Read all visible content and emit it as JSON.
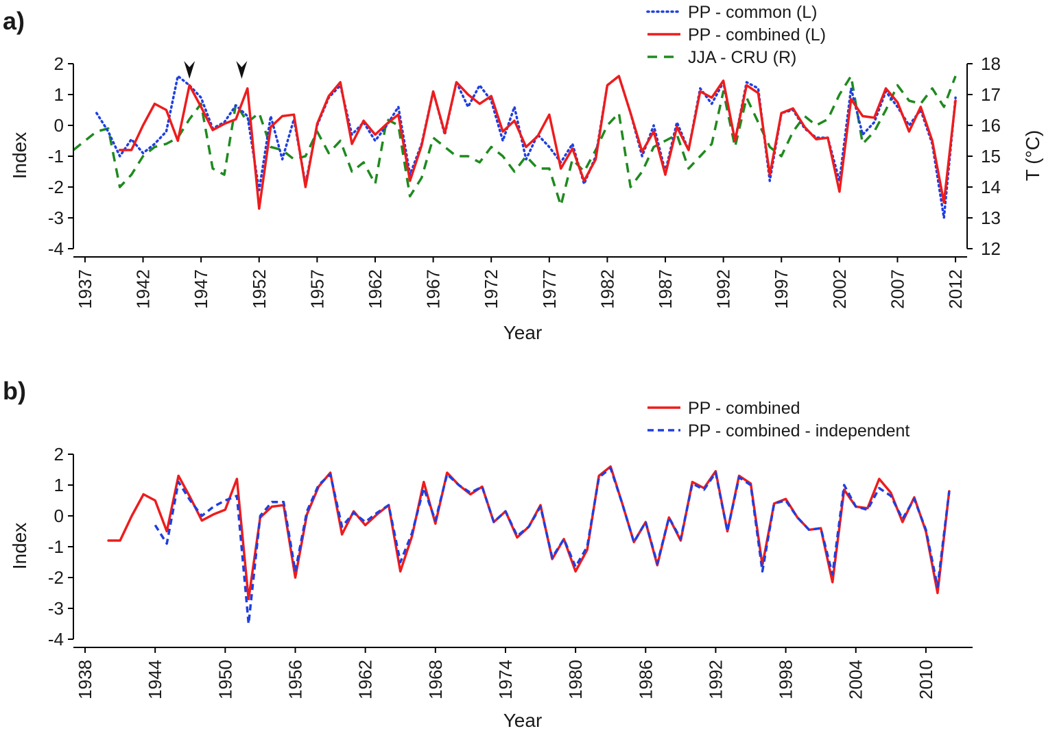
{
  "chart_data": [
    {
      "panel": "a)",
      "type": "line",
      "xlabel": "Year",
      "ylabel": "Index",
      "y2label": "T (°C)",
      "ylim": [
        -4,
        2
      ],
      "y2lim": [
        12,
        18
      ],
      "xlim": [
        1936,
        2013
      ],
      "xticks": [
        1937,
        1942,
        1947,
        1952,
        1957,
        1962,
        1967,
        1972,
        1977,
        1982,
        1987,
        1992,
        1997,
        2002,
        2007,
        2012
      ],
      "yticks": [
        -4,
        -3,
        -2,
        -1,
        0,
        1,
        2
      ],
      "y2ticks": [
        12,
        13,
        14,
        15,
        16,
        17,
        18
      ],
      "legend_position": "top-right",
      "markers": [
        {
          "name": "arrow-1946",
          "x": 1946
        },
        {
          "name": "arrow-1950",
          "x": 1950.5
        }
      ],
      "series": [
        {
          "name": "PP - common (L)",
          "axis": "left",
          "style": "dotted",
          "color": "#1f3fe0",
          "x": [
            1938,
            1939,
            1940,
            1941,
            1942,
            1943,
            1944,
            1945,
            1946,
            1947,
            1948,
            1949,
            1950,
            1951,
            1952,
            1953,
            1954,
            1955,
            1956,
            1957,
            1958,
            1959,
            1960,
            1961,
            1962,
            1963,
            1964,
            1965,
            1966,
            1967,
            1968,
            1969,
            1970,
            1971,
            1972,
            1973,
            1974,
            1975,
            1976,
            1977,
            1978,
            1979,
            1980,
            1981,
            1982,
            1983,
            1984,
            1985,
            1986,
            1987,
            1988,
            1989,
            1990,
            1991,
            1992,
            1993,
            1994,
            1995,
            1996,
            1997,
            1998,
            1999,
            2000,
            2001,
            2002,
            2003,
            2004,
            2005,
            2006,
            2007,
            2008,
            2009,
            2010,
            2011,
            2012
          ],
          "values": [
            0.4,
            -0.2,
            -1.0,
            -0.45,
            -0.9,
            -0.6,
            -0.2,
            1.6,
            1.3,
            0.9,
            -0.1,
            0.1,
            0.65,
            0.3,
            -2.1,
            0.3,
            -1.1,
            0.2,
            -1.9,
            0.0,
            0.9,
            1.3,
            -0.3,
            0.1,
            -0.5,
            0.0,
            0.6,
            -1.6,
            -0.6,
            1.1,
            -0.3,
            1.4,
            0.6,
            1.3,
            0.8,
            -0.5,
            0.6,
            -1.1,
            -0.3,
            -0.7,
            -1.2,
            -0.6,
            -1.9,
            -1.0,
            1.3,
            1.6,
            0.4,
            -1.0,
            0.0,
            -1.5,
            0.1,
            -0.8,
            1.2,
            0.7,
            1.4,
            -0.5,
            1.4,
            1.2,
            -1.8,
            0.4,
            0.5,
            -0.1,
            -0.4,
            -0.4,
            -1.8,
            1.2,
            -0.3,
            0.1,
            1.1,
            0.6,
            0.0,
            0.5,
            -0.6,
            -3.0,
            0.9
          ]
        },
        {
          "name": "PP - combined (L)",
          "axis": "left",
          "style": "solid",
          "color": "#ee1c1c",
          "x": [
            1940,
            1941,
            1942,
            1943,
            1944,
            1945,
            1946,
            1947,
            1948,
            1949,
            1950,
            1951,
            1952,
            1953,
            1954,
            1955,
            1956,
            1957,
            1958,
            1959,
            1960,
            1961,
            1962,
            1963,
            1964,
            1965,
            1966,
            1967,
            1968,
            1969,
            1970,
            1971,
            1972,
            1973,
            1974,
            1975,
            1976,
            1977,
            1978,
            1979,
            1980,
            1981,
            1982,
            1983,
            1984,
            1985,
            1986,
            1987,
            1988,
            1989,
            1990,
            1991,
            1992,
            1993,
            1994,
            1995,
            1996,
            1997,
            1998,
            1999,
            2000,
            2001,
            2002,
            2003,
            2004,
            2005,
            2006,
            2007,
            2008,
            2009,
            2010,
            2011,
            2012
          ],
          "values": [
            -0.8,
            -0.8,
            0.0,
            0.7,
            0.5,
            -0.5,
            1.3,
            0.6,
            -0.15,
            0.05,
            0.2,
            1.2,
            -2.7,
            -0.05,
            0.3,
            0.35,
            -2.0,
            0.05,
            0.95,
            1.4,
            -0.6,
            0.15,
            -0.3,
            0.05,
            0.35,
            -1.8,
            -0.65,
            1.1,
            -0.25,
            1.4,
            1.0,
            0.7,
            0.95,
            -0.2,
            0.15,
            -0.7,
            -0.35,
            0.35,
            -1.4,
            -0.75,
            -1.8,
            -1.1,
            1.3,
            1.6,
            0.4,
            -0.85,
            -0.2,
            -1.6,
            -0.05,
            -0.8,
            1.1,
            0.9,
            1.45,
            -0.5,
            1.3,
            1.05,
            -1.6,
            0.4,
            0.55,
            -0.05,
            -0.45,
            -0.4,
            -2.15,
            0.85,
            0.3,
            0.25,
            1.2,
            0.75,
            -0.2,
            0.6,
            -0.5,
            -2.5,
            0.8
          ]
        },
        {
          "name": "JJA - CRU (R)",
          "axis": "right",
          "style": "dashed",
          "color": "#1f8a1f",
          "x": [
            1936,
            1937,
            1938,
            1939,
            1940,
            1941,
            1942,
            1943,
            1944,
            1945,
            1946,
            1947,
            1948,
            1949,
            1950,
            1951,
            1952,
            1953,
            1954,
            1955,
            1956,
            1957,
            1958,
            1959,
            1960,
            1961,
            1962,
            1963,
            1964,
            1965,
            1966,
            1967,
            1968,
            1969,
            1970,
            1971,
            1972,
            1973,
            1974,
            1975,
            1976,
            1977,
            1978,
            1979,
            1980,
            1981,
            1982,
            1983,
            1984,
            1985,
            1986,
            1987,
            1988,
            1989,
            1990,
            1991,
            1992,
            1993,
            1994,
            1995,
            1996,
            1997,
            1998,
            1999,
            2000,
            2001,
            2002,
            2003,
            2004,
            2005,
            2006,
            2007,
            2008,
            2009,
            2010,
            2011,
            2012
          ],
          "values": [
            15.2,
            15.5,
            15.8,
            15.9,
            14.0,
            14.4,
            15.0,
            15.3,
            15.4,
            15.6,
            16.2,
            16.7,
            14.6,
            14.4,
            16.7,
            16.1,
            16.4,
            15.3,
            15.2,
            14.9,
            15.0,
            15.8,
            15.1,
            15.5,
            14.5,
            14.8,
            14.1,
            16.2,
            16.0,
            13.7,
            14.3,
            15.6,
            15.3,
            15.0,
            15.0,
            14.8,
            15.3,
            15.0,
            14.5,
            15.0,
            14.6,
            14.6,
            13.4,
            14.9,
            14.5,
            15.2,
            16.0,
            16.4,
            14.0,
            14.5,
            15.3,
            15.5,
            15.7,
            14.6,
            15.0,
            15.4,
            17.1,
            15.3,
            16.9,
            16.1,
            15.3,
            15.0,
            15.8,
            16.3,
            16.0,
            16.2,
            17.0,
            17.6,
            15.4,
            15.8,
            16.5,
            17.3,
            16.8,
            16.7,
            17.2,
            16.6,
            17.6
          ]
        }
      ]
    },
    {
      "panel": "b)",
      "type": "line",
      "xlabel": "Year",
      "ylabel": "Index",
      "ylim": [
        -4,
        2
      ],
      "xlim": [
        1937,
        2014
      ],
      "xticks": [
        1938,
        1944,
        1950,
        1956,
        1962,
        1968,
        1974,
        1980,
        1986,
        1992,
        1998,
        2004,
        2010
      ],
      "yticks": [
        -4,
        -3,
        -2,
        -1,
        0,
        1,
        2
      ],
      "legend_position": "top-right",
      "series": [
        {
          "name": "PP - combined",
          "style": "solid",
          "color": "#ee1c1c",
          "x": [
            1940,
            1941,
            1942,
            1943,
            1944,
            1945,
            1946,
            1947,
            1948,
            1949,
            1950,
            1951,
            1952,
            1953,
            1954,
            1955,
            1956,
            1957,
            1958,
            1959,
            1960,
            1961,
            1962,
            1963,
            1964,
            1965,
            1966,
            1967,
            1968,
            1969,
            1970,
            1971,
            1972,
            1973,
            1974,
            1975,
            1976,
            1977,
            1978,
            1979,
            1980,
            1981,
            1982,
            1983,
            1984,
            1985,
            1986,
            1987,
            1988,
            1989,
            1990,
            1991,
            1992,
            1993,
            1994,
            1995,
            1996,
            1997,
            1998,
            1999,
            2000,
            2001,
            2002,
            2003,
            2004,
            2005,
            2006,
            2007,
            2008,
            2009,
            2010,
            2011,
            2012
          ],
          "values": [
            -0.8,
            -0.8,
            0.0,
            0.7,
            0.5,
            -0.5,
            1.3,
            0.6,
            -0.15,
            0.05,
            0.2,
            1.2,
            -2.7,
            -0.05,
            0.3,
            0.35,
            -2.0,
            0.05,
            0.95,
            1.4,
            -0.6,
            0.15,
            -0.3,
            0.05,
            0.35,
            -1.8,
            -0.65,
            1.1,
            -0.25,
            1.4,
            1.0,
            0.7,
            0.95,
            -0.2,
            0.15,
            -0.7,
            -0.35,
            0.35,
            -1.4,
            -0.75,
            -1.8,
            -1.1,
            1.3,
            1.6,
            0.4,
            -0.85,
            -0.2,
            -1.6,
            -0.05,
            -0.8,
            1.1,
            0.9,
            1.45,
            -0.5,
            1.3,
            1.05,
            -1.6,
            0.4,
            0.55,
            -0.05,
            -0.45,
            -0.4,
            -2.15,
            0.85,
            0.3,
            0.25,
            1.2,
            0.75,
            -0.2,
            0.6,
            -0.5,
            -2.5,
            0.8
          ]
        },
        {
          "name": "PP - combined - independent",
          "style": "dashed",
          "color": "#1f3fe0",
          "x": [
            1944,
            1945,
            1946,
            1947,
            1948,
            1949,
            1950,
            1951,
            1952,
            1953,
            1954,
            1955,
            1956,
            1957,
            1958,
            1959,
            1960,
            1961,
            1962,
            1963,
            1964,
            1965,
            1966,
            1967,
            1968,
            1969,
            1970,
            1971,
            1972,
            1973,
            1974,
            1975,
            1976,
            1977,
            1978,
            1979,
            1980,
            1981,
            1982,
            1983,
            1984,
            1985,
            1986,
            1987,
            1988,
            1989,
            1990,
            1991,
            1992,
            1993,
            1994,
            1995,
            1996,
            1997,
            1998,
            1999,
            2000,
            2001,
            2002,
            2003,
            2004,
            2005,
            2006,
            2007,
            2008,
            2009,
            2010,
            2011,
            2012
          ],
          "values": [
            -0.3,
            -0.9,
            1.1,
            0.5,
            0.0,
            0.3,
            0.5,
            0.65,
            -3.5,
            0.0,
            0.45,
            0.45,
            -1.8,
            0.15,
            1.0,
            1.35,
            -0.35,
            0.1,
            -0.2,
            0.1,
            0.35,
            -1.5,
            -0.55,
            0.9,
            -0.15,
            1.35,
            1.0,
            0.75,
            0.95,
            -0.2,
            0.15,
            -0.65,
            -0.35,
            0.3,
            -1.35,
            -0.75,
            -1.65,
            -1.0,
            1.25,
            1.55,
            0.4,
            -0.85,
            -0.2,
            -1.55,
            -0.05,
            -0.75,
            1.05,
            0.85,
            1.4,
            -0.5,
            1.25,
            1.0,
            -1.8,
            0.4,
            0.5,
            -0.05,
            -0.45,
            -0.4,
            -1.9,
            1.0,
            0.3,
            0.2,
            0.9,
            0.65,
            -0.1,
            0.55,
            -0.45,
            -2.3,
            0.8
          ]
        }
      ]
    }
  ]
}
